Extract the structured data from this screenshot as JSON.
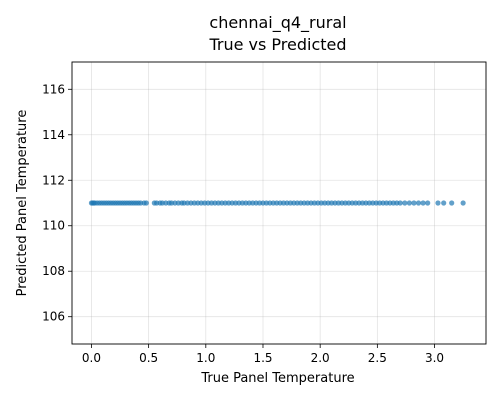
{
  "chart_data": {
    "type": "scatter",
    "title": [
      "chennai_q4_rural",
      "True vs Predicted"
    ],
    "xlabel": "True Panel Temperature",
    "ylabel": "Predicted Panel Temperature",
    "xlim": [
      -0.17,
      3.45
    ],
    "ylim": [
      104.8,
      117.2
    ],
    "xticks": [
      0.0,
      0.5,
      1.0,
      1.5,
      2.0,
      2.5,
      3.0
    ],
    "xtick_labels": [
      "0.0",
      "0.5",
      "1.0",
      "1.5",
      "2.0",
      "2.5",
      "3.0"
    ],
    "yticks": [
      106,
      108,
      110,
      112,
      114,
      116
    ],
    "ytick_labels": [
      "106",
      "108",
      "110",
      "112",
      "114",
      "116"
    ],
    "grid": true,
    "color": "#1f77b4",
    "series": [
      {
        "x": [
          0.0,
          0.01,
          0.02,
          0.03,
          0.05,
          0.07,
          0.09,
          0.11,
          0.13,
          0.15,
          0.17,
          0.19,
          0.21,
          0.23,
          0.25,
          0.27,
          0.29,
          0.31,
          0.33,
          0.35,
          0.37,
          0.39,
          0.41,
          0.43,
          0.46,
          0.48,
          0.55,
          0.57,
          0.6,
          0.62,
          0.65,
          0.68,
          0.7,
          0.73,
          0.76,
          0.79,
          0.81,
          0.84,
          0.87,
          0.9,
          0.93,
          0.96,
          0.99,
          1.02,
          1.05,
          1.08,
          1.11,
          1.14,
          1.17,
          1.2,
          1.23,
          1.26,
          1.29,
          1.32,
          1.35,
          1.38,
          1.41,
          1.44,
          1.47,
          1.5,
          1.53,
          1.56,
          1.59,
          1.62,
          1.65,
          1.68,
          1.71,
          1.74,
          1.77,
          1.8,
          1.83,
          1.86,
          1.89,
          1.92,
          1.95,
          1.98,
          2.01,
          2.04,
          2.07,
          2.1,
          2.13,
          2.16,
          2.19,
          2.22,
          2.25,
          2.28,
          2.31,
          2.34,
          2.37,
          2.4,
          2.43,
          2.46,
          2.49,
          2.52,
          2.55,
          2.58,
          2.61,
          2.64,
          2.67,
          2.7,
          2.74,
          2.78,
          2.82,
          2.86,
          2.9,
          2.94,
          3.03,
          3.08,
          3.15,
          3.25
        ],
        "y": [
          111.0,
          111.0,
          111.0,
          111.0,
          111.0,
          111.0,
          111.0,
          111.0,
          111.0,
          111.0,
          111.0,
          111.0,
          111.0,
          111.0,
          111.0,
          111.0,
          111.0,
          111.0,
          111.0,
          111.0,
          111.0,
          111.0,
          111.0,
          111.0,
          111.0,
          111.0,
          111.0,
          111.0,
          111.0,
          111.0,
          111.0,
          111.0,
          111.0,
          111.0,
          111.0,
          111.0,
          111.0,
          111.0,
          111.0,
          111.0,
          111.0,
          111.0,
          111.0,
          111.0,
          111.0,
          111.0,
          111.0,
          111.0,
          111.0,
          111.0,
          111.0,
          111.0,
          111.0,
          111.0,
          111.0,
          111.0,
          111.0,
          111.0,
          111.0,
          111.0,
          111.0,
          111.0,
          111.0,
          111.0,
          111.0,
          111.0,
          111.0,
          111.0,
          111.0,
          111.0,
          111.0,
          111.0,
          111.0,
          111.0,
          111.0,
          111.0,
          111.0,
          111.0,
          111.0,
          111.0,
          111.0,
          111.0,
          111.0,
          111.0,
          111.0,
          111.0,
          111.0,
          111.0,
          111.0,
          111.0,
          111.0,
          111.0,
          111.0,
          111.0,
          111.0,
          111.0,
          111.0,
          111.0,
          111.0,
          111.0,
          111.0,
          111.0,
          111.0,
          111.0,
          111.0,
          111.0,
          111.0,
          111.0,
          111.0,
          111.0
        ]
      }
    ]
  }
}
